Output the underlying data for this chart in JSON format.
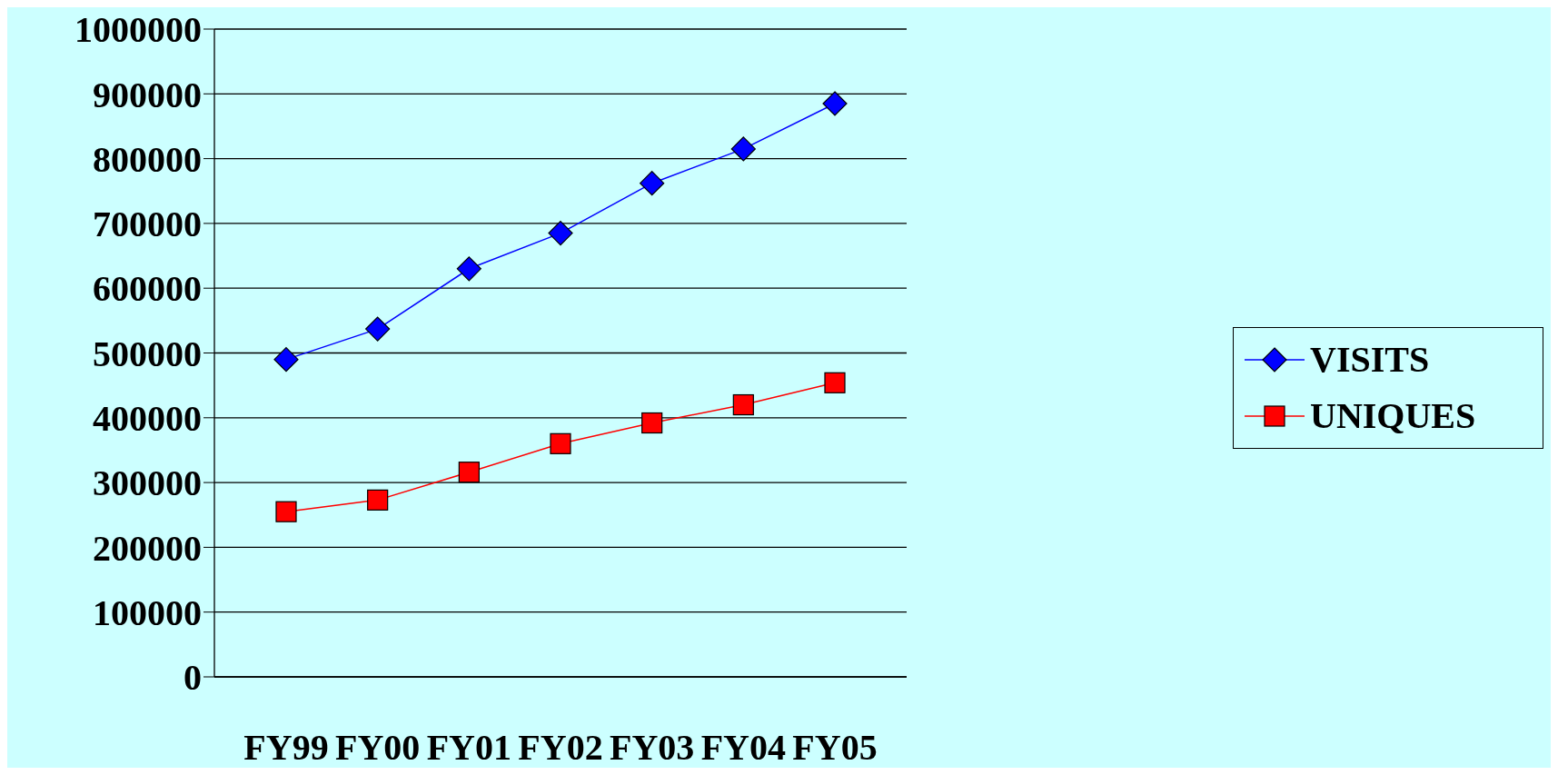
{
  "chart_data": {
    "type": "line",
    "categories": [
      "FY99",
      "FY00",
      "FY01",
      "FY02",
      "FY03",
      "FY04",
      "FY05"
    ],
    "series": [
      {
        "name": "VISITS",
        "color": "#0000ff",
        "marker": "diamond",
        "values": [
          490000,
          537000,
          630000,
          685000,
          762000,
          815000,
          885000
        ]
      },
      {
        "name": "UNIQUES",
        "color": "#ff0000",
        "marker": "square",
        "values": [
          255000,
          273000,
          316000,
          360000,
          392000,
          420000,
          454000
        ]
      }
    ],
    "ylim": [
      0,
      1000000
    ],
    "yticks": [
      0,
      100000,
      200000,
      300000,
      400000,
      500000,
      600000,
      700000,
      800000,
      900000,
      1000000
    ],
    "grid": "y",
    "legend": "right"
  }
}
